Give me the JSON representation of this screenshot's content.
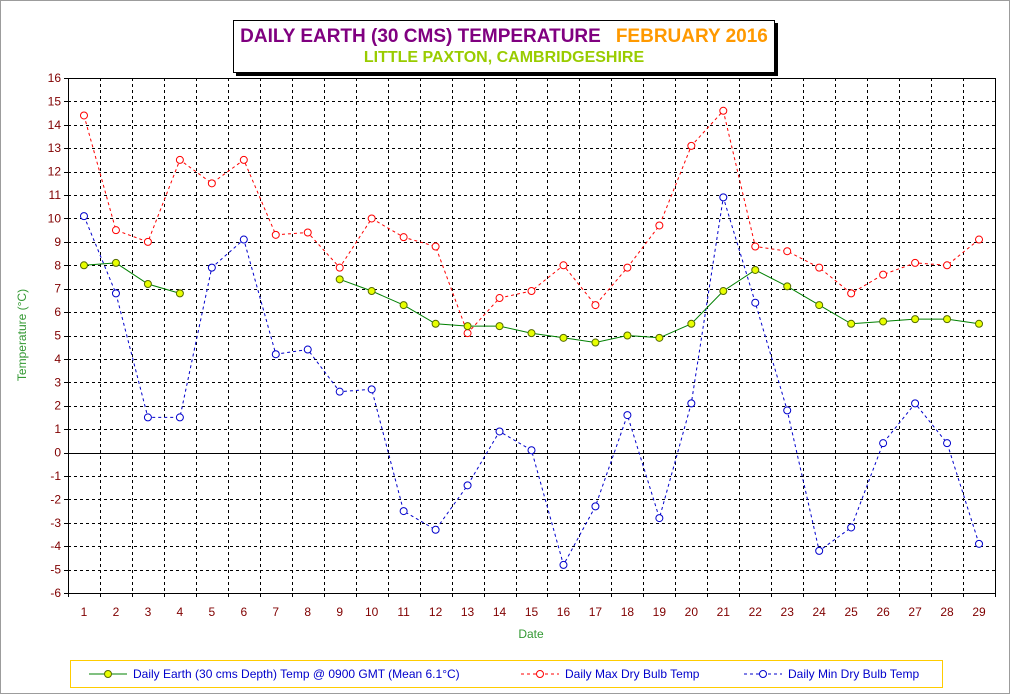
{
  "colors": {
    "title_main": "#800080",
    "title_period": "#ff9900",
    "subtitle": "#99cc00",
    "axis_label": "#339933",
    "tick_label": "#800000",
    "legend_text": "#0000cc",
    "legend_border": "#ffcc00",
    "grid": "#000000"
  },
  "chart_data": {
    "type": "line",
    "title": "DAILY EARTH (30 CMS) TEMPERATURE",
    "title_period": "FEBRUARY 2016",
    "subtitle": "LITTLE PAXTON, CAMBRIDGESHIRE",
    "xlabel": "Date",
    "ylabel": "Temperature (°C)",
    "x": [
      1,
      2,
      3,
      4,
      5,
      6,
      7,
      8,
      9,
      10,
      11,
      12,
      13,
      14,
      15,
      16,
      17,
      18,
      19,
      20,
      21,
      22,
      23,
      24,
      25,
      26,
      27,
      28,
      29
    ],
    "ylim": [
      -6,
      16
    ],
    "yticks": [
      -6,
      -5,
      -4,
      -3,
      -2,
      -1,
      0,
      1,
      2,
      3,
      4,
      5,
      6,
      7,
      8,
      9,
      10,
      11,
      12,
      13,
      14,
      15,
      16
    ],
    "grid": true,
    "zero_line": true,
    "legend_position": "bottom",
    "series": [
      {
        "name": "Daily Earth (30 cms Depth) Temp @ 0900 GMT (Mean 6.1°C)",
        "line_color": "#008000",
        "line_style": "solid",
        "marker": "circle",
        "marker_fill": "#e8ff00",
        "marker_edge": "#556b00",
        "values": [
          8.0,
          8.1,
          7.2,
          6.8,
          null,
          null,
          null,
          null,
          7.4,
          6.9,
          6.3,
          5.5,
          5.4,
          5.4,
          5.1,
          4.9,
          4.7,
          5.0,
          4.9,
          5.5,
          6.9,
          7.8,
          7.1,
          6.3,
          5.5,
          5.6,
          5.7,
          5.7,
          5.5
        ]
      },
      {
        "name": "Daily Max Dry Bulb Temp",
        "line_color": "#ff0000",
        "line_style": "dashed",
        "marker": "circle",
        "marker_fill": "#ffffff",
        "marker_edge": "#ff0000",
        "values": [
          14.4,
          9.5,
          9.0,
          12.5,
          11.5,
          12.5,
          9.3,
          9.4,
          7.9,
          10.0,
          9.2,
          8.8,
          5.1,
          6.6,
          6.9,
          8.0,
          6.3,
          7.9,
          9.7,
          13.1,
          14.6,
          8.8,
          8.6,
          7.9,
          6.8,
          7.6,
          8.1,
          8.0,
          9.1
        ]
      },
      {
        "name": "Daily Min Dry Bulb Temp",
        "line_color": "#0000cc",
        "line_style": "dashed",
        "marker": "circle",
        "marker_fill": "#ffffff",
        "marker_edge": "#0000cc",
        "values": [
          10.1,
          6.8,
          1.5,
          1.5,
          7.9,
          9.1,
          4.2,
          4.4,
          2.6,
          2.7,
          -2.5,
          -3.3,
          -1.4,
          0.9,
          0.1,
          -4.8,
          -2.3,
          1.6,
          -2.8,
          2.1,
          10.9,
          6.4,
          1.8,
          -4.2,
          -3.2,
          0.4,
          2.1,
          0.4,
          -3.9
        ]
      }
    ]
  }
}
